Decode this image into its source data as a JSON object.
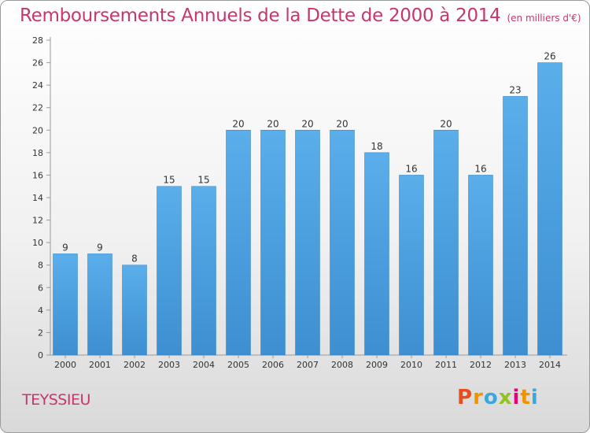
{
  "chart_data": {
    "type": "bar",
    "title": "Remboursements Annuels de la Dette de 2000 à 2014",
    "subtitle": "(en milliers d'€)",
    "xlabel": "",
    "ylabel": "",
    "categories": [
      "2000",
      "2001",
      "2002",
      "2003",
      "2004",
      "2005",
      "2006",
      "2007",
      "2008",
      "2009",
      "2010",
      "2011",
      "2012",
      "2013",
      "2014"
    ],
    "values": [
      9,
      9,
      8,
      15,
      15,
      20,
      20,
      20,
      20,
      18,
      16,
      20,
      16,
      23,
      26
    ],
    "ylim": [
      0,
      28
    ],
    "yticks": [
      0,
      2,
      4,
      6,
      8,
      10,
      12,
      14,
      16,
      18,
      20,
      22,
      24,
      26,
      28
    ],
    "grid": false,
    "bar_color": "#3d8fd1"
  },
  "footer": {
    "commune": "TEYSSIEU",
    "logo_letters": [
      "P",
      "r",
      "o",
      "x",
      "i",
      "t",
      "i"
    ],
    "logo_colors": [
      "#e84e1b",
      "#f39200",
      "#3aa8df",
      "#95c11f",
      "#e6007e",
      "#f39200",
      "#3aa8df"
    ]
  }
}
